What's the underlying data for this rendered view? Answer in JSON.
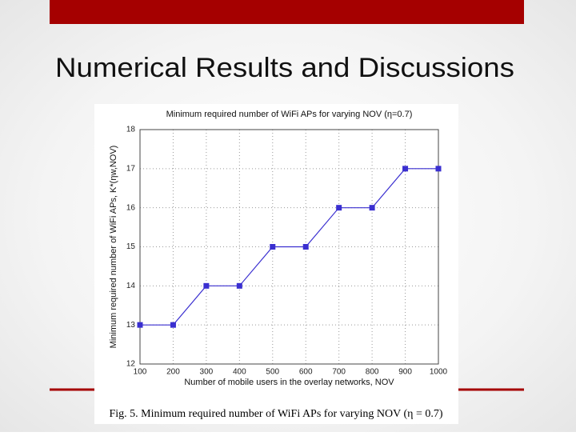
{
  "slide": {
    "title": "Numerical Results and Discussions",
    "caption": "Fig. 5.   Minimum required number of WiFi APs for varying NOV (η = 0.7)"
  },
  "chart_data": {
    "type": "line",
    "title": "Minimum required number of WiFi APs for varying NOV (η=0.7)",
    "x_label": "Number of mobile users in the overlay networks, NOV",
    "y_label": "Minimum required number of WiFi APs, K*(ηw,NOV)",
    "x": [
      100,
      200,
      300,
      400,
      500,
      600,
      700,
      800,
      900,
      1000
    ],
    "series": [
      {
        "name": "K*",
        "color": "#3a2fd0",
        "values": [
          13,
          13,
          14,
          14,
          15,
          15,
          16,
          16,
          17,
          17
        ]
      }
    ],
    "xlim": [
      100,
      1000
    ],
    "xticks": [
      100,
      200,
      300,
      400,
      500,
      600,
      700,
      800,
      900,
      1000
    ],
    "ylim": [
      12,
      18
    ],
    "yticks": [
      12,
      13,
      14,
      15,
      16,
      17,
      18
    ],
    "grid": true
  }
}
